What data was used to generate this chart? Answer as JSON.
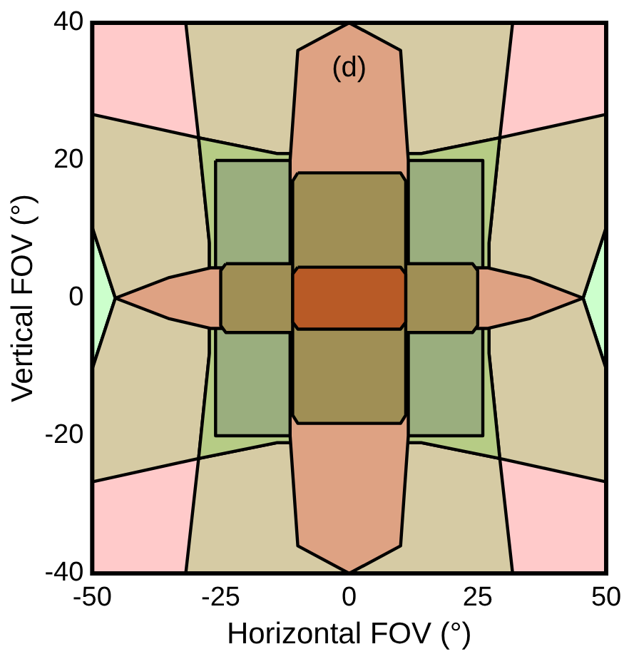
{
  "chart_data": {
    "type": "area",
    "xlabel": "Horizontal FOV (°)",
    "ylabel": "Vertical FOV (°)",
    "annotations": [
      "(d)"
    ],
    "xlim": [
      -50,
      50
    ],
    "xticks": [
      -50,
      -25,
      0,
      25,
      50
    ],
    "ylim": [
      -40,
      40
    ],
    "yticks": [
      -40,
      -20,
      0,
      20,
      40
    ],
    "grid": false,
    "legend": false,
    "marker": "none",
    "line_style": "solid",
    "series": [
      {
        "color": "#ffcaca",
        "x": [
          -50,
          50,
          50,
          -50
        ],
        "values": [
          40,
          40,
          -40,
          -40
        ]
      },
      {
        "color": "#ccffcc",
        "x": [
          -50,
          -45.5,
          -50
        ],
        "values": [
          10.3,
          0,
          -10.3
        ]
      },
      {
        "color": "#ccffcc",
        "x": [
          50,
          45.5,
          50
        ],
        "values": [
          10.3,
          0,
          -10.3
        ]
      },
      {
        "color": "#d6cba4",
        "x": [
          -31.8,
          31.8,
          29.3,
          14,
          -14,
          -29.3
        ],
        "values": [
          40,
          40,
          23.3,
          21,
          21,
          23.3
        ]
      },
      {
        "color": "#d6cba4",
        "x": [
          -31.8,
          31.8,
          29.3,
          14,
          -14,
          -29.3
        ],
        "values": [
          -40,
          -40,
          -23.3,
          -21,
          -21,
          -23.3
        ]
      },
      {
        "color": "#d6cba4",
        "x": [
          -50,
          -29.3,
          -27.2,
          -27.2,
          -29.3,
          -50,
          -50,
          -45.5,
          -50
        ],
        "values": [
          26.7,
          23.3,
          8,
          -8,
          -23.3,
          -26.7,
          -10.3,
          0,
          10.3
        ]
      },
      {
        "color": "#d6cba4",
        "x": [
          50,
          29.3,
          27.2,
          27.2,
          29.3,
          50,
          50,
          45.5,
          50
        ],
        "values": [
          26.7,
          23.3,
          8,
          -8,
          -23.3,
          -26.7,
          -10.3,
          0,
          10.3
        ]
      },
      {
        "color": "#b6cc85",
        "x": [
          -29.3,
          -14,
          14,
          29.3,
          27.2,
          27.2,
          29.3,
          14,
          -14,
          -29.3,
          -27.2,
          -27.2
        ],
        "values": [
          23.3,
          21,
          21,
          23.3,
          8,
          -8,
          -23.3,
          -21,
          -21,
          -23.3,
          -8,
          8
        ]
      },
      {
        "color": "#9aae7e",
        "x": [
          -26,
          26,
          26,
          -26
        ],
        "values": [
          20,
          20,
          -20,
          -20
        ]
      },
      {
        "color": "#dea283",
        "x": [
          0,
          10,
          11.5,
          11.5,
          10,
          0,
          -10,
          -11.5,
          -11.5,
          -10
        ],
        "values": [
          40,
          36,
          20,
          -20,
          -36,
          -40,
          -36,
          -20,
          20,
          36
        ]
      },
      {
        "color": "#dea283",
        "x": [
          -45.5,
          -35,
          -27,
          27,
          35,
          45.5,
          35,
          27,
          -27,
          -35
        ],
        "values": [
          0,
          3,
          4.4,
          4.4,
          3,
          0,
          -3,
          -4.4,
          -4.4,
          -3
        ]
      },
      {
        "color": "#a08f55",
        "x": [
          -24,
          24,
          25,
          25,
          24,
          -24,
          -25,
          -25
        ],
        "values": [
          5,
          5,
          4,
          -4,
          -5,
          -5,
          -4,
          4
        ]
      },
      {
        "color": "#a08f55",
        "x": [
          -10,
          10,
          11,
          11,
          10,
          -10,
          -11,
          -11
        ],
        "values": [
          18.2,
          18.2,
          17,
          -17,
          -18.2,
          -18.2,
          -17,
          17
        ]
      },
      {
        "color": "#b85a26",
        "x": [
          -10,
          10,
          11,
          11,
          10,
          -10,
          -11,
          -11
        ],
        "values": [
          4.5,
          4.5,
          3.5,
          -3.5,
          -4.5,
          -4.5,
          -3.5,
          3.5
        ]
      }
    ]
  }
}
